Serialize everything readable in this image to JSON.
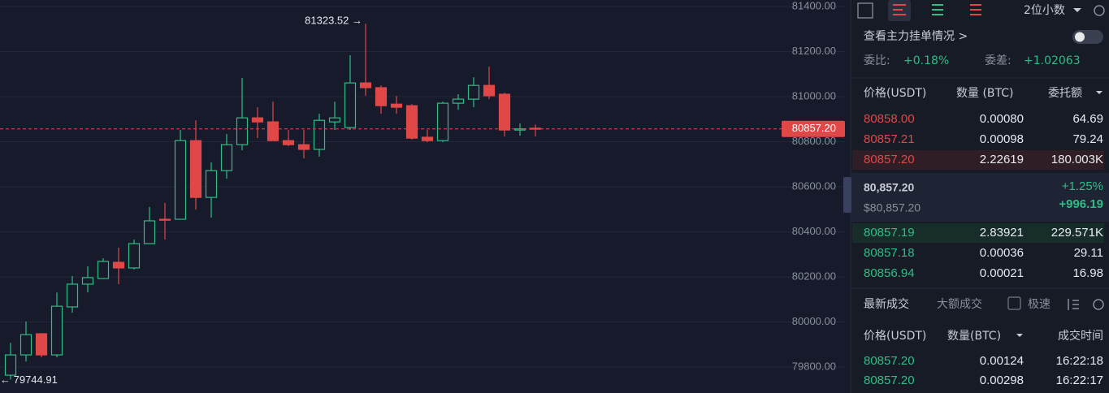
{
  "chart_data": {
    "type": "candlestick",
    "up_color": "#2ebd85",
    "down_color": "#e04848",
    "ylim": [
      79685,
      81429
    ],
    "yticks": [
      {
        "value": 81400,
        "label": "81400.00"
      },
      {
        "value": 81200,
        "label": "81200.00"
      },
      {
        "value": 81000,
        "label": "81000.00"
      },
      {
        "value": 80800,
        "label": "80800.00"
      },
      {
        "value": 80600,
        "label": "80600.00"
      },
      {
        "value": 80400,
        "label": "80400.00"
      },
      {
        "value": 80200,
        "label": "80200.00"
      },
      {
        "value": 80000,
        "label": "80000.00"
      },
      {
        "value": 79800,
        "label": "79800.00"
      }
    ],
    "grid": true,
    "open": [
      79764,
      79854,
      79948,
      79854,
      80067,
      80168,
      80193,
      80265,
      80240,
      80348,
      80456,
      80456,
      80805,
      80553,
      80672,
      80787,
      80906,
      80888,
      80805,
      80787,
      80766,
      80888,
      80863,
      81061,
      81040,
      80967,
      80960,
      80820,
      80805,
      80971,
      80989,
      81050,
      81011,
      80852,
      80860
    ],
    "close": [
      79854,
      79944,
      79854,
      80070,
      80168,
      80197,
      80269,
      80240,
      80348,
      80449,
      80452,
      80805,
      80553,
      80672,
      80787,
      80906,
      80888,
      80805,
      80787,
      80766,
      80895,
      80906,
      81061,
      81040,
      80960,
      80953,
      80816,
      80805,
      80971,
      80989,
      81050,
      81004,
      80852,
      80857.2,
      80857.2
    ],
    "high": [
      79908,
      80002,
      79951,
      80131,
      80204,
      80247,
      80283,
      80330,
      80366,
      80510,
      80528,
      80852,
      80895,
      80708,
      80834,
      81083,
      80953,
      80978,
      80852,
      80852,
      80924,
      80978,
      81184,
      81323.52,
      81050,
      81003,
      80967,
      80852,
      80978,
      81011,
      81086,
      81133,
      81018,
      80881,
      80877
    ],
    "low": [
      79744.91,
      79825,
      79843,
      79843,
      80041,
      80132,
      80207,
      80168,
      80233,
      80348,
      80366,
      80456,
      80499,
      80463,
      80636,
      80762,
      80816,
      80809,
      80780,
      80726,
      80734,
      80852,
      80852,
      81004,
      80924,
      80924,
      80809,
      80798,
      80798,
      80942,
      80953,
      80989,
      80823,
      80827,
      80823
    ],
    "annotations": [
      "81323.52 →",
      "← 79744.91"
    ],
    "last_price": {
      "value": 80857.2,
      "label": "80857.20"
    }
  },
  "toolbar": {
    "decimals": "2位小数"
  },
  "order_book": {
    "main_orders": "查看主力挂单情况 >",
    "ratio_label": "委比:",
    "ratio": "+0.18%",
    "diff_label": "委差:",
    "diff": "+1.02063",
    "headers": [
      "价格(USDT)",
      "数量 (BTC)",
      "委托额"
    ],
    "asks": [
      [
        "80858.00",
        "0.00080",
        "64.69"
      ],
      [
        "80857.21",
        "0.00098",
        "79.24"
      ],
      [
        "80857.20",
        "2.22619",
        "180.003K"
      ]
    ],
    "mid_price": "80,857.20",
    "mid_usd": "$80,857.20",
    "change_pct": "+1.25%",
    "change": "+996.19",
    "bids": [
      [
        "80857.19",
        "2.83921",
        "229.571K"
      ],
      [
        "80857.18",
        "0.00036",
        "29.11"
      ],
      [
        "80856.94",
        "0.00021",
        "16.98"
      ]
    ]
  },
  "trades": {
    "tabs": [
      "最新成交",
      "大额成交"
    ],
    "fast": "极速",
    "headers": [
      "价格(USDT)",
      "数量(BTC)",
      "成交时间"
    ],
    "rows": [
      [
        "80857.20",
        "0.00124",
        "16:22:18"
      ],
      [
        "80857.20",
        "0.00298",
        "16:22:17"
      ]
    ]
  }
}
